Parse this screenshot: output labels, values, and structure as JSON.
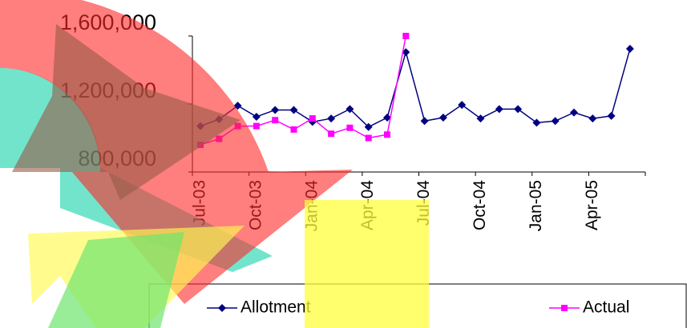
{
  "chart_data": {
    "type": "line",
    "categories": [
      "Jul-03",
      null,
      null,
      "Oct-03",
      null,
      null,
      "Jan-04",
      null,
      null,
      "Apr-04",
      null,
      null,
      "Jul-04",
      null,
      null,
      "Oct-04",
      null,
      null,
      "Jan-05",
      null,
      null,
      "Apr-05",
      null,
      null
    ],
    "series": [
      {
        "name": "Allotment",
        "color": "#000080",
        "marker": "diamond",
        "values": [
          1070000,
          1110000,
          1190000,
          1125000,
          1165000,
          1165000,
          1095000,
          1115000,
          1170000,
          1065000,
          1120000,
          1505000,
          1100000,
          1120000,
          1195000,
          1115000,
          1170000,
          1170000,
          1090000,
          1100000,
          1150000,
          1115000,
          1130000,
          1525000
        ]
      },
      {
        "name": "Actual",
        "color": "#ff00ff",
        "marker": "square",
        "values": [
          960000,
          995000,
          1070000,
          1070000,
          1105000,
          1050000,
          1115000,
          1025000,
          1060000,
          1000000,
          1020000,
          1600000,
          null,
          null,
          null,
          null,
          null,
          null,
          null,
          null,
          null,
          null,
          null,
          null
        ]
      }
    ],
    "ylim": [
      800000,
      1600000
    ],
    "yticks": [
      {
        "value": 800000,
        "label": "800,000"
      },
      {
        "value": 1200000,
        "label": "1,200,000"
      },
      {
        "value": 1600000,
        "label": "1,600,000"
      }
    ],
    "legend": "bottom"
  }
}
